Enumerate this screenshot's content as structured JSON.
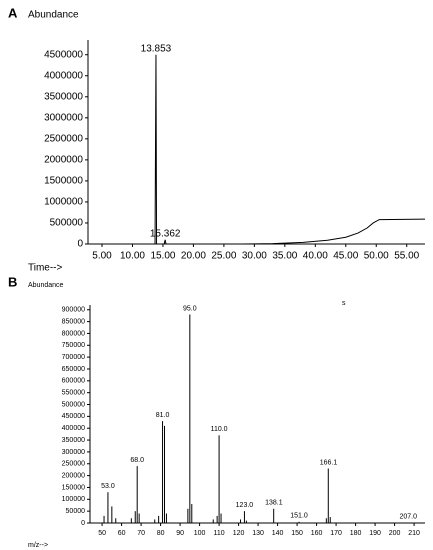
{
  "chart_data": [
    {
      "type": "line",
      "panel_label": "A",
      "ylabel": "Abundance",
      "xlabel": "Time-->",
      "xlim": [
        2.7,
        58
      ],
      "ylim": [
        0,
        4850000
      ],
      "xticks": [
        {
          "value": 5,
          "label": "5.00"
        },
        {
          "value": 10,
          "label": "10.00"
        },
        {
          "value": 15,
          "label": "15.00"
        },
        {
          "value": 20,
          "label": "20.00"
        },
        {
          "value": 25,
          "label": "25.00"
        },
        {
          "value": 30,
          "label": "30.00"
        },
        {
          "value": 35,
          "label": "35.00"
        },
        {
          "value": 40,
          "label": "40.00"
        },
        {
          "value": 45,
          "label": "45.00"
        },
        {
          "value": 50,
          "label": "50.00"
        },
        {
          "value": 55,
          "label": "55.00"
        }
      ],
      "yticks": [
        0,
        500000,
        1000000,
        1500000,
        2000000,
        2500000,
        3000000,
        3500000,
        4000000,
        4500000
      ],
      "series": [
        {
          "color": "#000000",
          "x": [
            3,
            13.7,
            13.853,
            13.95,
            15.2,
            15.362,
            15.5,
            28,
            33,
            38,
            42,
            45,
            47,
            48.5,
            49.5,
            50.5,
            58
          ],
          "values": [
            0,
            0,
            4500000,
            0,
            0,
            100000,
            0,
            0,
            10000,
            40000,
            90000,
            160000,
            260000,
            380000,
            500000,
            580000,
            590000
          ]
        }
      ],
      "annotations": [
        {
          "text": "13.853",
          "x": 13.853,
          "y": 4500000
        },
        {
          "text": "15.362",
          "x": 15.362,
          "y": 100000
        }
      ]
    },
    {
      "type": "bar",
      "panel_label": "B",
      "ylabel": "Abundance",
      "xlabel": "m/z-->",
      "note": "s",
      "xlim": [
        43.8,
        215.6
      ],
      "ylim": [
        0,
        920000
      ],
      "xticks": [
        50,
        60,
        70,
        80,
        90,
        100,
        110,
        120,
        130,
        140,
        150,
        160,
        170,
        180,
        190,
        200,
        210
      ],
      "yticks": [
        0,
        50000,
        100000,
        150000,
        200000,
        250000,
        300000,
        350000,
        400000,
        450000,
        500000,
        550000,
        600000,
        650000,
        700000,
        750000,
        800000,
        850000,
        900000
      ],
      "color": "#000000",
      "x": [
        51,
        53,
        55,
        57,
        65,
        67,
        68,
        69,
        77,
        79,
        81,
        82,
        83,
        94,
        95,
        96,
        107,
        109,
        110,
        111,
        121,
        123,
        124,
        138,
        151,
        165,
        166,
        167,
        207
      ],
      "values": [
        30000,
        130000,
        70000,
        20000,
        20000,
        50000,
        240000,
        40000,
        15000,
        30000,
        430000,
        410000,
        40000,
        60000,
        880000,
        80000,
        15000,
        30000,
        370000,
        40000,
        15000,
        50000,
        10000,
        60000,
        5000,
        20000,
        230000,
        25000,
        2000
      ],
      "annotations": [
        {
          "text": "53.0",
          "x": 53,
          "y": 130000
        },
        {
          "text": "68.0",
          "x": 68,
          "y": 240000
        },
        {
          "text": "81.0",
          "x": 81,
          "y": 430000
        },
        {
          "text": "95.0",
          "x": 95,
          "y": 880000
        },
        {
          "text": "110.0",
          "x": 110,
          "y": 370000
        },
        {
          "text": "123.0",
          "x": 123,
          "y": 50000
        },
        {
          "text": "138.1",
          "x": 138.1,
          "y": 60000
        },
        {
          "text": "151.0",
          "x": 151,
          "y": 5000
        },
        {
          "text": "166.1",
          "x": 166.1,
          "y": 230000
        },
        {
          "text": "207.0",
          "x": 207,
          "y": 2000
        }
      ]
    }
  ]
}
